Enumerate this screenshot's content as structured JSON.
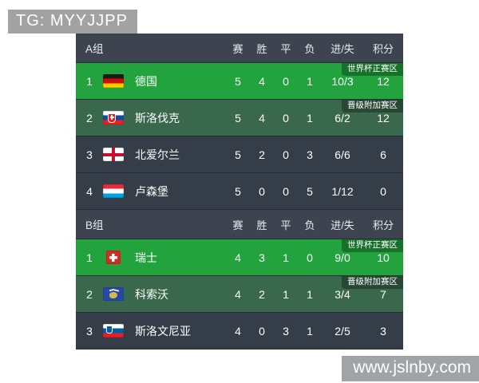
{
  "page": {
    "top_badge": "TG: MYYJJPP",
    "bottom_badge": "www.jslnby.com"
  },
  "colors": {
    "qualified_row_green": "#23a33e",
    "playoff_row_green": "#3a684d",
    "dark_row": "#343d48",
    "header_row": "#3d4450",
    "badge_gray": "#a2a2a2",
    "badge_gray2": "#a0a4a6"
  },
  "table": {
    "columns": [
      "赛",
      "胜",
      "平",
      "负",
      "进/失",
      "积分"
    ],
    "zone_labels": {
      "qualified": "世界杯正赛区",
      "playoff": "晋级附加赛区"
    },
    "groups": [
      {
        "name": "A组",
        "teams": [
          {
            "rank": "1",
            "name": "德国",
            "flag": "de",
            "played": "5",
            "win": "4",
            "draw": "0",
            "loss": "1",
            "goals": "10/3",
            "points": "12",
            "zone": "世界杯正赛区",
            "highlight": "qualified"
          },
          {
            "rank": "2",
            "name": "斯洛伐克",
            "flag": "sk",
            "played": "5",
            "win": "4",
            "draw": "0",
            "loss": "1",
            "goals": "6/2",
            "points": "12",
            "zone": "晋级附加赛区",
            "highlight": "playoff"
          },
          {
            "rank": "3",
            "name": "北爱尔兰",
            "flag": "ni",
            "played": "5",
            "win": "2",
            "draw": "0",
            "loss": "3",
            "goals": "6/6",
            "points": "6",
            "zone": "",
            "highlight": "none"
          },
          {
            "rank": "4",
            "name": "卢森堡",
            "flag": "lu",
            "played": "5",
            "win": "0",
            "draw": "0",
            "loss": "5",
            "goals": "1/12",
            "points": "0",
            "zone": "",
            "highlight": "none"
          }
        ]
      },
      {
        "name": "B组",
        "teams": [
          {
            "rank": "1",
            "name": "瑞士",
            "flag": "ch",
            "played": "4",
            "win": "3",
            "draw": "1",
            "loss": "0",
            "goals": "9/0",
            "points": "10",
            "zone": "世界杯正赛区",
            "highlight": "qualified"
          },
          {
            "rank": "2",
            "name": "科索沃",
            "flag": "xk",
            "played": "4",
            "win": "2",
            "draw": "1",
            "loss": "1",
            "goals": "3/4",
            "points": "7",
            "zone": "晋级附加赛区",
            "highlight": "playoff"
          },
          {
            "rank": "3",
            "name": "斯洛文尼亚",
            "flag": "si",
            "played": "4",
            "win": "0",
            "draw": "3",
            "loss": "1",
            "goals": "2/5",
            "points": "3",
            "zone": "",
            "highlight": "none"
          }
        ]
      }
    ]
  }
}
